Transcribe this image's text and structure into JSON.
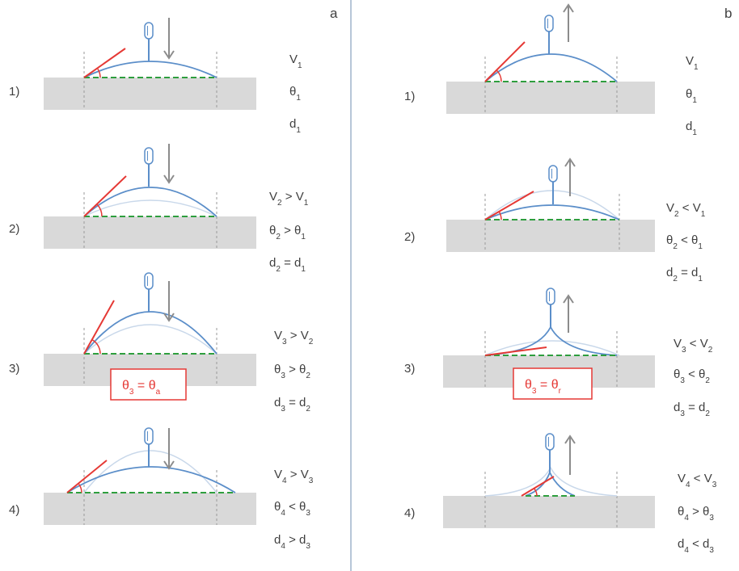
{
  "panels": [
    {
      "letter": "a",
      "box_label": "θ3 = θa",
      "rows": [
        {
          "step": "1)",
          "lines": [
            "V1",
            "θ1",
            "d1"
          ]
        },
        {
          "step": "2)",
          "lines": [
            "V2 > V1",
            "θ2 > θ1",
            "d2 = d1"
          ]
        },
        {
          "step": "3)",
          "lines": [
            "V3 > V2",
            "θ3 > θ2",
            "d3 = d2"
          ]
        },
        {
          "step": "4)",
          "lines": [
            "V4 > V3",
            "θ4 < θ3",
            "d4 > d3"
          ]
        }
      ]
    },
    {
      "letter": "b",
      "box_label": "θ3 = θr",
      "rows": [
        {
          "step": "1)",
          "lines": [
            "V1",
            "θ1",
            "d1"
          ]
        },
        {
          "step": "2)",
          "lines": [
            "V2 < V1",
            "θ2 < θ1",
            "d2 = d1"
          ]
        },
        {
          "step": "3)",
          "lines": [
            "V3 < V2",
            "θ3 < θ2",
            "d3 = d2"
          ]
        },
        {
          "step": "4)",
          "lines": [
            "V4 < V3",
            "θ4 > θ3",
            "d4 < d3"
          ]
        }
      ]
    }
  ],
  "colors": {
    "substrate": "#d9d9d9",
    "drop": "#5b8ec9",
    "ghost": "#c9d8ea",
    "tangent": "#e53935",
    "baseline": "#2e9e3e",
    "arrow": "#8c8c8c",
    "text": "#404040",
    "divider": "#9fb4cc"
  }
}
